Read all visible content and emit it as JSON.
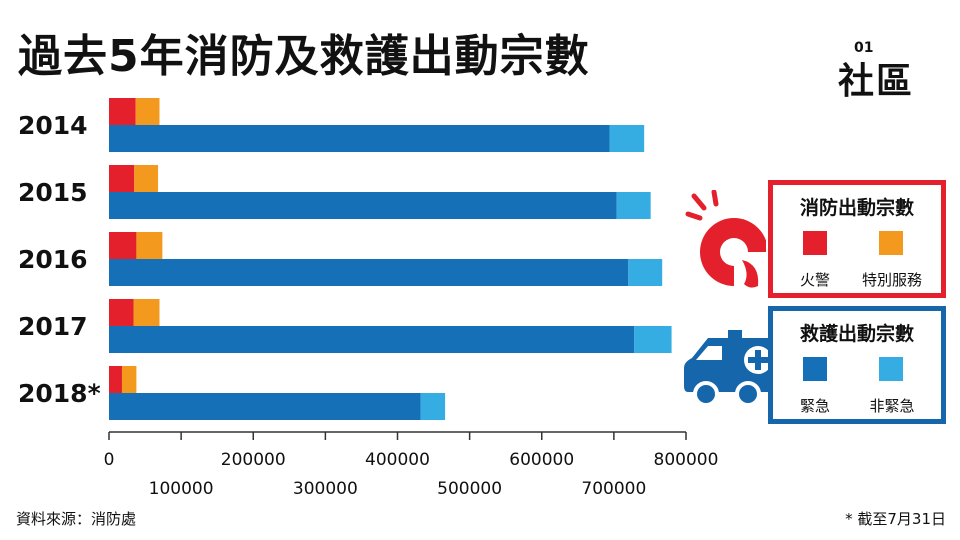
{
  "title": "過去5年消防及救護出動宗數",
  "logo": {
    "text": "社區",
    "superscript": "01"
  },
  "legend": {
    "fire": {
      "title": "消防出動宗數",
      "items": [
        "火警",
        "特別服務"
      ]
    },
    "ambulance": {
      "title": "救護出動宗數",
      "items": [
        "緊急",
        "非緊急"
      ]
    }
  },
  "colors": {
    "fire": "#e3202b",
    "special": "#f39a1e",
    "emergency": "#1670b8",
    "non_emergency": "#35ace2"
  },
  "chart_data": {
    "type": "bar",
    "orientation": "horizontal",
    "stacked": true,
    "categories": [
      "2014",
      "2015",
      "2016",
      "2017",
      "2018*"
    ],
    "groups": [
      {
        "name": "消防出動宗數",
        "series": [
          {
            "name": "火警",
            "values": [
              37000,
              35000,
              38000,
              34000,
              18000
            ]
          },
          {
            "name": "特別服務",
            "values": [
              33000,
              33000,
              36000,
              36000,
              20000
            ]
          }
        ]
      },
      {
        "name": "救護出動宗數",
        "series": [
          {
            "name": "緊急",
            "values": [
              694000,
              704000,
              720000,
              728000,
              432000
            ]
          },
          {
            "name": "非緊急",
            "values": [
              48000,
              47000,
              47000,
              52000,
              34000
            ]
          }
        ]
      }
    ],
    "xlim": [
      0,
      800000
    ],
    "xticks_top": [
      "0",
      "200000",
      "400000",
      "600000",
      "800000"
    ],
    "xticks_bottom": [
      "100000",
      "300000",
      "500000",
      "700000"
    ],
    "xtick_values_top": [
      0,
      200000,
      400000,
      600000,
      800000
    ],
    "xtick_values_bottom": [
      100000,
      300000,
      500000,
      700000
    ],
    "grid": false
  },
  "footer": {
    "source": "資料來源：消防處",
    "note": "* 截至7月31日"
  }
}
